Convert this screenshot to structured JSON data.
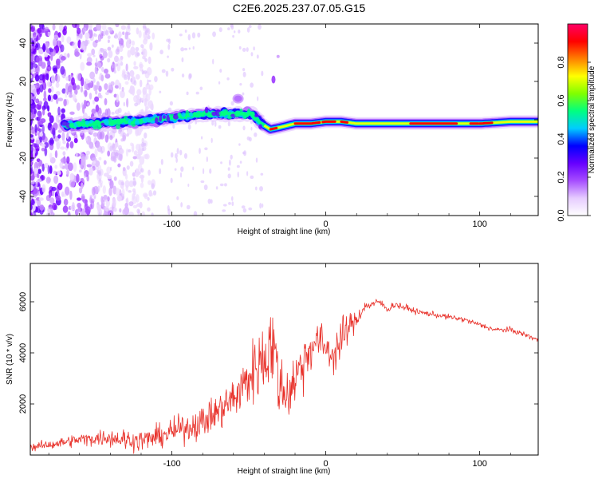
{
  "title": "C2E6.2025.237.07.05.G15",
  "chart_data": [
    {
      "type": "heatmap",
      "title": "C2E6.2025.237.07.05.G15",
      "xlabel": "Height of straight line (km)",
      "ylabel": "Frequency (Hz)",
      "xlim": [
        -192,
        138
      ],
      "ylim": [
        -50,
        50
      ],
      "xticks": [
        -100,
        0,
        100
      ],
      "yticks": [
        -40,
        -20,
        0,
        20,
        40
      ],
      "colorbar": {
        "label": "Normalized spectral amplitude",
        "range": [
          0,
          1
        ],
        "ticks": [
          "0.0",
          "0.2",
          "0.4",
          "0.6",
          "0.8"
        ],
        "colors": [
          "#ffffff",
          "#e6ccff",
          "#a64dff",
          "#6600ff",
          "#0000ff",
          "#00ccff",
          "#00ff80",
          "#80ff00",
          "#ffff00",
          "#ff8000",
          "#ff0000",
          "#ff0066"
        ]
      },
      "ridge": {
        "x": [
          -170,
          -150,
          -130,
          -110,
          -100,
          -80,
          -60,
          -48,
          -42,
          -36,
          -30,
          -20,
          -10,
          0,
          10,
          20,
          40,
          60,
          80,
          100,
          120,
          138
        ],
        "y": [
          -3,
          -2,
          -1,
          0,
          1,
          3,
          3,
          3,
          -2,
          -5,
          -4,
          -2,
          -2,
          -1,
          -1,
          -2,
          -2,
          -2,
          -2,
          -2,
          -1,
          -1
        ]
      }
    },
    {
      "type": "line",
      "xlabel": "Height of straight line (km)",
      "ylabel": "SNR (10 * v/v)",
      "xlim": [
        -192,
        138
      ],
      "ylim": [
        0,
        7500
      ],
      "xticks": [
        -100,
        0,
        100
      ],
      "yticks": [
        2000,
        4000,
        6000
      ],
      "color": "#e8312a",
      "series": [
        {
          "x": [
            -192,
            -180,
            -170,
            -160,
            -150,
            -140,
            -130,
            -120,
            -110,
            -100,
            -90,
            -80,
            -70,
            -60,
            -55,
            -50,
            -45,
            -40,
            -35,
            -30,
            -25,
            -20,
            -15,
            -10,
            -5,
            0,
            5,
            10,
            15,
            20,
            25,
            30,
            35,
            40,
            45,
            50,
            60,
            70,
            80,
            90,
            100,
            110,
            120,
            130,
            138
          ],
          "y": [
            300,
            400,
            500,
            600,
            650,
            700,
            600,
            550,
            700,
            900,
            1100,
            1300,
            1700,
            2200,
            2600,
            3000,
            3500,
            3800,
            4500,
            2700,
            2400,
            3000,
            3600,
            4200,
            4500,
            4200,
            3900,
            4500,
            5000,
            5300,
            5800,
            5900,
            6000,
            5700,
            5900,
            5800,
            5600,
            5500,
            5400,
            5300,
            5100,
            4900,
            4900,
            4700,
            4500
          ],
          "amp": [
            200,
            250,
            300,
            350,
            400,
            500,
            600,
            650,
            600,
            700,
            800,
            900,
            1000,
            1300,
            1400,
            1600,
            1900,
            2200,
            2600,
            1800,
            1600,
            1700,
            1600,
            1300,
            1100,
            1000,
            1100,
            1200,
            800,
            500,
            300,
            250,
            200,
            200,
            200,
            200,
            150,
            150,
            150,
            150,
            150,
            150,
            150,
            150,
            150
          ]
        }
      ]
    }
  ]
}
